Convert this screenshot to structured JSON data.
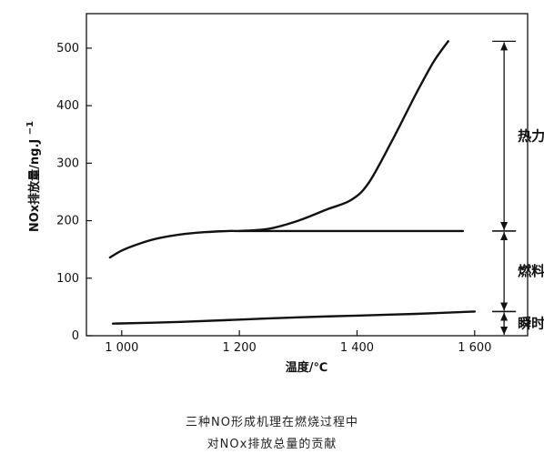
{
  "chart_data": {
    "type": "line",
    "xlabel": "温度/℃",
    "ylabel": "NOx排放量/ng.J",
    "ylabel_sub": "x",
    "ylabel_sup": "−1",
    "xlim": [
      940,
      1690
    ],
    "ylim": [
      0,
      560
    ],
    "x_ticks": [
      1000,
      1200,
      1400,
      1600
    ],
    "x_tick_labels": [
      "1 000",
      "1 200",
      "1 400",
      "1 600"
    ],
    "y_ticks": [
      0,
      100,
      200,
      300,
      400,
      500
    ],
    "y_tick_labels": [
      "0",
      "100",
      "200",
      "300",
      "400",
      "500"
    ],
    "grid": false,
    "series": [
      {
        "x": [
          980,
          1000,
          1030,
          1060,
          1100,
          1140,
          1180,
          1200,
          1300,
          1400,
          1500,
          1580
        ],
        "y": [
          136,
          148,
          160,
          169,
          176,
          180,
          182,
          182,
          182,
          182,
          182,
          182
        ]
      },
      {
        "x": [
          1200,
          1250,
          1300,
          1350,
          1390,
          1420,
          1460,
          1500,
          1530,
          1555
        ],
        "y": [
          182,
          186,
          200,
          220,
          236,
          266,
          340,
          420,
          476,
          512
        ]
      },
      {
        "x": [
          985,
          1100,
          1200,
          1300,
          1400,
          1500,
          1600
        ],
        "y": [
          21,
          24,
          28,
          32,
          35,
          38,
          42
        ]
      }
    ],
    "annotations": [
      {
        "label": "热力型",
        "y_range": [
          182,
          512
        ],
        "label_y": 347
      },
      {
        "label": "燃料型",
        "y_range": [
          42,
          182
        ],
        "label_y": 112
      },
      {
        "label": "瞬时",
        "y_range": [
          0,
          42
        ],
        "label_y": 21
      }
    ],
    "annotation_x": 1650,
    "caption": [
      "三种NO形成机理在燃烧过程中",
      "对NOx排放总量的贡献"
    ]
  }
}
